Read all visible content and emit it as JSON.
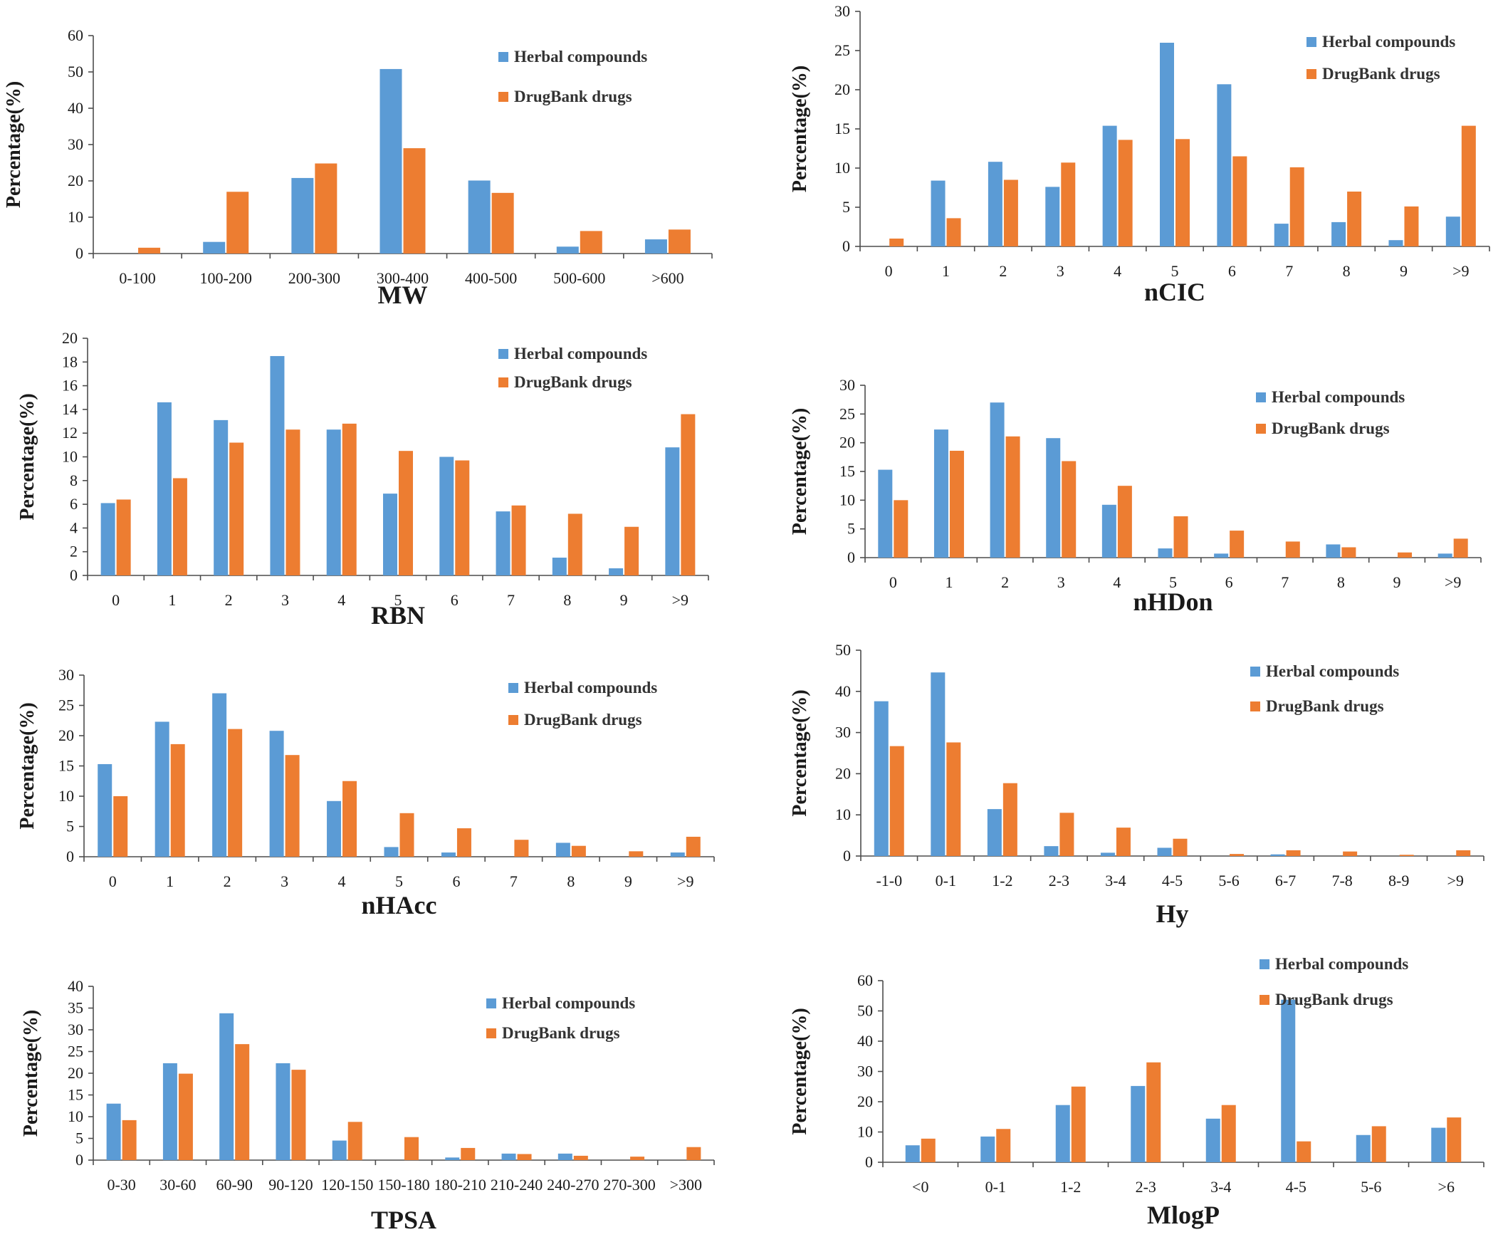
{
  "colors": {
    "herbal": "#5b9bd5",
    "drugbank": "#ed7d31",
    "axis": "#4d4d4d"
  },
  "chart_data": [
    {
      "type": "bar",
      "title": "MW",
      "xlabel": "MW",
      "ylabel": "Percentage(%)",
      "categories": [
        "0-100",
        "100-200",
        "200-300",
        "300-400",
        "400-500",
        "500-600",
        ">600"
      ],
      "ylim": [
        0,
        60
      ],
      "yticks": [
        0,
        10,
        20,
        30,
        40,
        50,
        60
      ],
      "legend": [
        "Herbal compounds",
        "DrugBank drugs"
      ],
      "series": [
        {
          "name": "Herbal compounds",
          "values": [
            0,
            3.2,
            20.8,
            50.8,
            20.1,
            1.9,
            3.9
          ]
        },
        {
          "name": "DrugBank drugs",
          "values": [
            1.6,
            17.0,
            24.8,
            29.0,
            16.7,
            6.2,
            6.6
          ]
        }
      ]
    },
    {
      "type": "bar",
      "title": "nCIC",
      "xlabel": "nCIC",
      "ylabel": "Percentage(%)",
      "categories": [
        "0",
        "1",
        "2",
        "3",
        "4",
        "5",
        "6",
        "7",
        "8",
        "9",
        ">9"
      ],
      "ylim": [
        0,
        30
      ],
      "yticks": [
        0,
        5,
        10,
        15,
        20,
        25,
        30
      ],
      "legend": [
        "Herbal compounds",
        "DrugBank drugs"
      ],
      "series": [
        {
          "name": "Herbal compounds",
          "values": [
            0,
            8.4,
            10.8,
            7.6,
            15.4,
            26.0,
            20.7,
            2.9,
            3.1,
            0.8,
            3.8
          ]
        },
        {
          "name": "DrugBank drugs",
          "values": [
            1.0,
            3.6,
            8.5,
            10.7,
            13.6,
            13.7,
            11.5,
            10.1,
            7.0,
            5.1,
            15.4
          ]
        }
      ]
    },
    {
      "type": "bar",
      "title": "RBN",
      "xlabel": "RBN",
      "ylabel": "Percentage(%)",
      "categories": [
        "0",
        "1",
        "2",
        "3",
        "4",
        "5",
        "6",
        "7",
        "8",
        "9",
        ">9"
      ],
      "ylim": [
        0,
        20
      ],
      "yticks": [
        0,
        2,
        4,
        6,
        8,
        10,
        12,
        14,
        16,
        18,
        20
      ],
      "legend": [
        "Herbal compounds",
        "DrugBank drugs"
      ],
      "series": [
        {
          "name": "Herbal compounds",
          "values": [
            6.1,
            14.6,
            13.1,
            18.5,
            12.3,
            6.9,
            10.0,
            5.4,
            1.5,
            0.6,
            10.8
          ]
        },
        {
          "name": "DrugBank drugs",
          "values": [
            6.4,
            8.2,
            11.2,
            12.3,
            12.8,
            10.5,
            9.7,
            5.9,
            5.2,
            4.1,
            13.6
          ]
        }
      ]
    },
    {
      "type": "bar",
      "title": "nHDon",
      "xlabel": "nHDon",
      "ylabel": "Percentage(%)",
      "categories": [
        "0",
        "1",
        "2",
        "3",
        "4",
        "5",
        "6",
        "7",
        "8",
        "9",
        ">9"
      ],
      "ylim": [
        0,
        30
      ],
      "yticks": [
        0,
        5,
        10,
        15,
        20,
        25,
        30
      ],
      "legend": [
        "Herbal compounds",
        "DrugBank drugs"
      ],
      "series": [
        {
          "name": "Herbal compounds",
          "values": [
            15.3,
            22.3,
            27.0,
            20.8,
            9.2,
            1.6,
            0.7,
            0,
            2.3,
            0,
            0.7
          ]
        },
        {
          "name": "DrugBank drugs",
          "values": [
            10.0,
            18.6,
            21.1,
            16.8,
            12.5,
            7.2,
            4.7,
            2.8,
            1.8,
            0.9,
            3.3
          ]
        }
      ]
    },
    {
      "type": "bar",
      "title": "nHAcc",
      "xlabel": "nHAcc",
      "ylabel": "Percentage(%)",
      "categories": [
        "0",
        "1",
        "2",
        "3",
        "4",
        "5",
        "6",
        "7",
        "8",
        "9",
        ">9"
      ],
      "ylim": [
        0,
        30
      ],
      "yticks": [
        0,
        5,
        10,
        15,
        20,
        25,
        30
      ],
      "legend": [
        "Herbal compounds",
        "DrugBank drugs"
      ],
      "series": [
        {
          "name": "Herbal compounds",
          "values": [
            15.3,
            22.3,
            27.0,
            20.8,
            9.2,
            1.6,
            0.7,
            0,
            2.3,
            0,
            0.7
          ]
        },
        {
          "name": "DrugBank drugs",
          "values": [
            10.0,
            18.6,
            21.1,
            16.8,
            12.5,
            7.2,
            4.7,
            2.8,
            1.8,
            0.9,
            3.3
          ]
        }
      ]
    },
    {
      "type": "bar",
      "title": "Hy",
      "xlabel": "Hy",
      "ylabel": "Percentage(%)",
      "categories": [
        "-1-0",
        "0-1",
        "1-2",
        "2-3",
        "3-4",
        "4-5",
        "5-6",
        "6-7",
        "7-8",
        "8-9",
        ">9"
      ],
      "ylim": [
        0,
        50
      ],
      "yticks": [
        0,
        10,
        20,
        30,
        40,
        50
      ],
      "legend": [
        "Herbal compounds",
        "DrugBank drugs"
      ],
      "series": [
        {
          "name": "Herbal compounds",
          "values": [
            37.6,
            44.6,
            11.4,
            2.4,
            0.8,
            2.0,
            0,
            0.4,
            0,
            0,
            0
          ]
        },
        {
          "name": "DrugBank drugs",
          "values": [
            26.7,
            27.6,
            17.7,
            10.5,
            6.9,
            4.2,
            0.5,
            1.4,
            1.1,
            0.3,
            1.4
          ]
        }
      ]
    },
    {
      "type": "bar",
      "title": "TPSA",
      "xlabel": "TPSA",
      "ylabel": "Percentage(%)",
      "categories": [
        "0-30",
        "30-60",
        "60-90",
        "90-120",
        "120-150",
        "150-180",
        "180-210",
        "210-240",
        "240-270",
        "270-300",
        ">300"
      ],
      "ylim": [
        0,
        40
      ],
      "yticks": [
        0,
        5,
        10,
        15,
        20,
        25,
        30,
        35,
        40
      ],
      "legend": [
        "Herbal compounds",
        "DrugBank drugs"
      ],
      "series": [
        {
          "name": "Herbal compounds",
          "values": [
            13.0,
            22.3,
            33.8,
            22.3,
            4.5,
            0,
            0.6,
            1.5,
            1.5,
            0,
            0
          ]
        },
        {
          "name": "DrugBank drugs",
          "values": [
            9.2,
            19.9,
            26.7,
            20.8,
            8.8,
            5.3,
            2.8,
            1.4,
            1.0,
            0.8,
            3.0
          ]
        }
      ]
    },
    {
      "type": "bar",
      "title": "MlogP",
      "xlabel": "MlogP",
      "ylabel": "Percentage(%)",
      "categories": [
        "<0",
        "0-1",
        "1-2",
        "2-3",
        "3-4",
        "4-5",
        "5-6",
        ">6"
      ],
      "ylim": [
        0,
        60
      ],
      "yticks": [
        0,
        10,
        20,
        30,
        40,
        50,
        60
      ],
      "legend": [
        "Herbal compounds",
        "DrugBank drugs"
      ],
      "series": [
        {
          "name": "Herbal compounds",
          "values": [
            5.6,
            8.5,
            18.9,
            25.2,
            14.4,
            53.7,
            9.0,
            11.4
          ]
        },
        {
          "name": "DrugBank drugs",
          "values": [
            7.8,
            11.0,
            25.0,
            33.0,
            18.9,
            6.9,
            11.9,
            14.8
          ]
        }
      ]
    }
  ]
}
